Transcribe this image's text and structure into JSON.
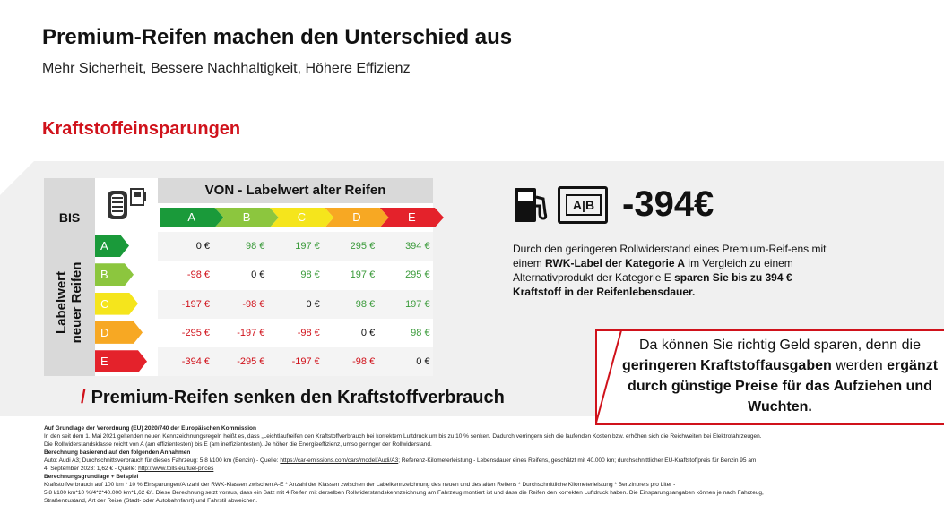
{
  "header": {
    "title": "Premium-Reifen machen den Unterschied aus",
    "subtitle": "Mehr Sicherheit, Bessere Nachhaltigkeit, Höhere Effizienz"
  },
  "section": {
    "title": "Kraftstoffeinsparungen"
  },
  "matrix": {
    "von_label": "VON - Labelwert alter Reifen",
    "bis_label": "BIS",
    "ylabel_line1": "Labelwert",
    "ylabel_line2": "neuer Reifen",
    "columns": [
      "A",
      "B",
      "C",
      "D",
      "E"
    ],
    "rows": [
      {
        "label": "A",
        "values": [
          "0 €",
          "98 €",
          "197 €",
          "295 €",
          "394 €"
        ]
      },
      {
        "label": "B",
        "values": [
          "-98 €",
          "0 €",
          "98 €",
          "197 €",
          "295 €"
        ]
      },
      {
        "label": "C",
        "values": [
          "-197 €",
          "-98 €",
          "0 €",
          "98 €",
          "197 €"
        ]
      },
      {
        "label": "D",
        "values": [
          "-295 €",
          "-197 €",
          "-98 €",
          "0 €",
          "98 €"
        ]
      },
      {
        "label": "E",
        "values": [
          "-394 €",
          "-295 €",
          "-197 €",
          "-98 €",
          "0 €"
        ]
      }
    ],
    "label_colors": [
      "#1a9a3a",
      "#8cc63e",
      "#f5e51c",
      "#f7a823",
      "#e4222b"
    ],
    "positive_color": "#3a9a3a",
    "negative_color": "#d0121b",
    "zero_color": "#111111"
  },
  "claim": {
    "slash": "/",
    "text": "Premium-Reifen senken den Kraftstoffverbrauch"
  },
  "savings": {
    "value": "-394€",
    "icons": [
      "fuel-pump-icon",
      "ab-label-icon"
    ],
    "icon_ab_a": "A",
    "icon_ab_b": "B",
    "desc_1": "Durch den geringeren Rollwiderstand eines Premium-Reif-ens mit einem ",
    "desc_2": "RWK-Label der Kategorie A",
    "desc_3": " im Vergleich zu einem Alternativprodukt der Kategorie E ",
    "desc_4": "sparen Sie bis zu 394 € Kraftstoff in der Reifenlebensdauer."
  },
  "callout": {
    "t1": "Da können Sie richtig Geld sparen, denn die ",
    "t2": "geringeren Kraftstoffausgaben",
    "t3": " werden ",
    "t4": "ergänzt durch günstige Preise für das Aufziehen und Wuchten."
  },
  "footer": {
    "h1": "Auf Grundlage der Verordnung (EU) 2020/740 der Europäischen Kommission",
    "p1": "In den seit dem 1. Mai 2021 geltenden neuen Kennzeichnungsregeln heißt es, dass „Leichtlaufreifen den Kraftstoffverbrauch bei korrektem Luftdruck um bis zu 10 % senken. Dadurch verringern sich die laufenden Kosten bzw. erhöhen sich die Reichweiten bei Elektrofahrzeugen.",
    "p1b": "Die Rollwiderstandsklasse reicht von A (am effizientesten) bis E (am ineffizientesten). Je höher die Energieeffizienz, umso geringer der Rollwiderstand.",
    "h2": "Berechnung basierend auf den folgenden Annahmen",
    "p2a": "Auto: Audi A3; Durchschnittsverbrauch für dieses Fahrzeug: 5,8 l/100 km (Benzin) - Quelle: ",
    "p2link1": "https://car-emissions.com/cars/model/Audi/A3",
    "p2b": "; Referenz-Kilometerleistung - Lebensdauer eines Reifens, geschätzt mit 40.000 km; durchschnittlicher EU-Kraftstoffpreis für Benzin 95 am",
    "p2c": "4. September 2023: 1,62 € - Quelle: ",
    "p2link2": "http://www.tolls.eu/fuel-prices",
    "h3": "Berechnungsgrundlage + Beispiel",
    "p3a": "Kraftstoffverbrauch auf 100 km * 10 % Einsparungen/Anzahl der RWK-Klassen zwischen A-E * Anzahl der Klassen zwischen der Labelkennzeichnung des neuen und des alten Reifens * Durchschnittliche Kilometerleistung * Benzinpreis pro Liter -",
    "p3b": "5,8 l/100 km*10 %/4*2*40.000 km*1,62 €/l. Diese Berechnung setzt voraus, dass ein Satz mit 4 Reifen mit derselben Rollwiderstandskennzeichnung am Fahrzeug montiert ist und dass die Reifen den korrekten Luftdruck haben. Die Einsparungsangaben können je nach Fahrzeug,",
    "p3c": "Straßenzustand, Art der Reise (Stadt- oder Autobahnfahrt) und Fahrstil abweichen."
  }
}
